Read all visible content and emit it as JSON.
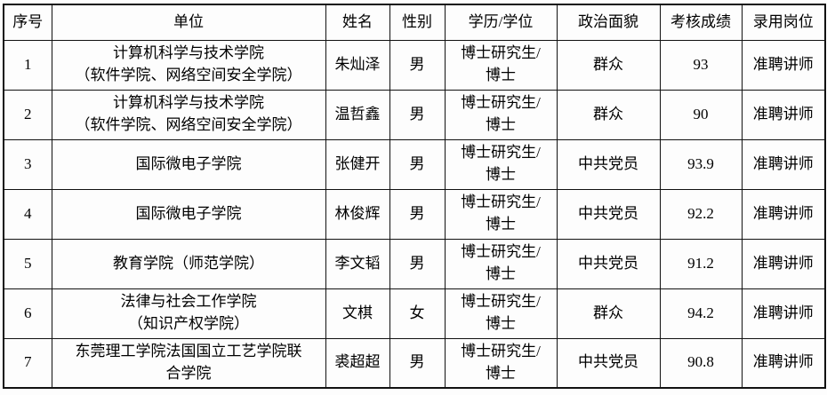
{
  "table": {
    "columns": [
      {
        "key": "index",
        "label": "序号"
      },
      {
        "key": "unit",
        "label": "单位"
      },
      {
        "key": "name",
        "label": "姓名"
      },
      {
        "key": "gender",
        "label": "性别"
      },
      {
        "key": "education",
        "label": "学历/学位"
      },
      {
        "key": "political_status",
        "label": "政治面貌"
      },
      {
        "key": "score",
        "label": "考核成绩"
      },
      {
        "key": "position",
        "label": "录用岗位"
      }
    ],
    "rows": [
      {
        "index": "1",
        "unit": "计算机科学与技术学院\n（软件学院、网络空间安全学院）",
        "name": "朱灿泽",
        "gender": "男",
        "education": "博士研究生/\n博士",
        "political_status": "群众",
        "score": "93",
        "position": "准聘讲师"
      },
      {
        "index": "2",
        "unit": "计算机科学与技术学院\n（软件学院、网络空间安全学院）",
        "name": "温哲鑫",
        "gender": "男",
        "education": "博士研究生/\n博士",
        "political_status": "群众",
        "score": "90",
        "position": "准聘讲师"
      },
      {
        "index": "3",
        "unit": "国际微电子学院",
        "name": "张健开",
        "gender": "男",
        "education": "博士研究生/\n博士",
        "political_status": "中共党员",
        "score": "93.9",
        "position": "准聘讲师"
      },
      {
        "index": "4",
        "unit": "国际微电子学院",
        "name": "林俊辉",
        "gender": "男",
        "education": "博士研究生/\n博士",
        "political_status": "中共党员",
        "score": "92.2",
        "position": "准聘讲师"
      },
      {
        "index": "5",
        "unit": "教育学院（师范学院）",
        "name": "李文韬",
        "gender": "男",
        "education": "博士研究生/\n博士",
        "political_status": "中共党员",
        "score": "91.2",
        "position": "准聘讲师"
      },
      {
        "index": "6",
        "unit": "法律与社会工作学院\n（知识产权学院）",
        "name": "文棋",
        "gender": "女",
        "education": "博士研究生/\n博士",
        "political_status": "群众",
        "score": "94.2",
        "position": "准聘讲师"
      },
      {
        "index": "7",
        "unit": "东莞理工学院法国国立工艺学院联\n合学院",
        "name": "裘超超",
        "gender": "男",
        "education": "博士研究生/\n博士",
        "political_status": "中共党员",
        "score": "90.8",
        "position": "准聘讲师"
      }
    ]
  }
}
